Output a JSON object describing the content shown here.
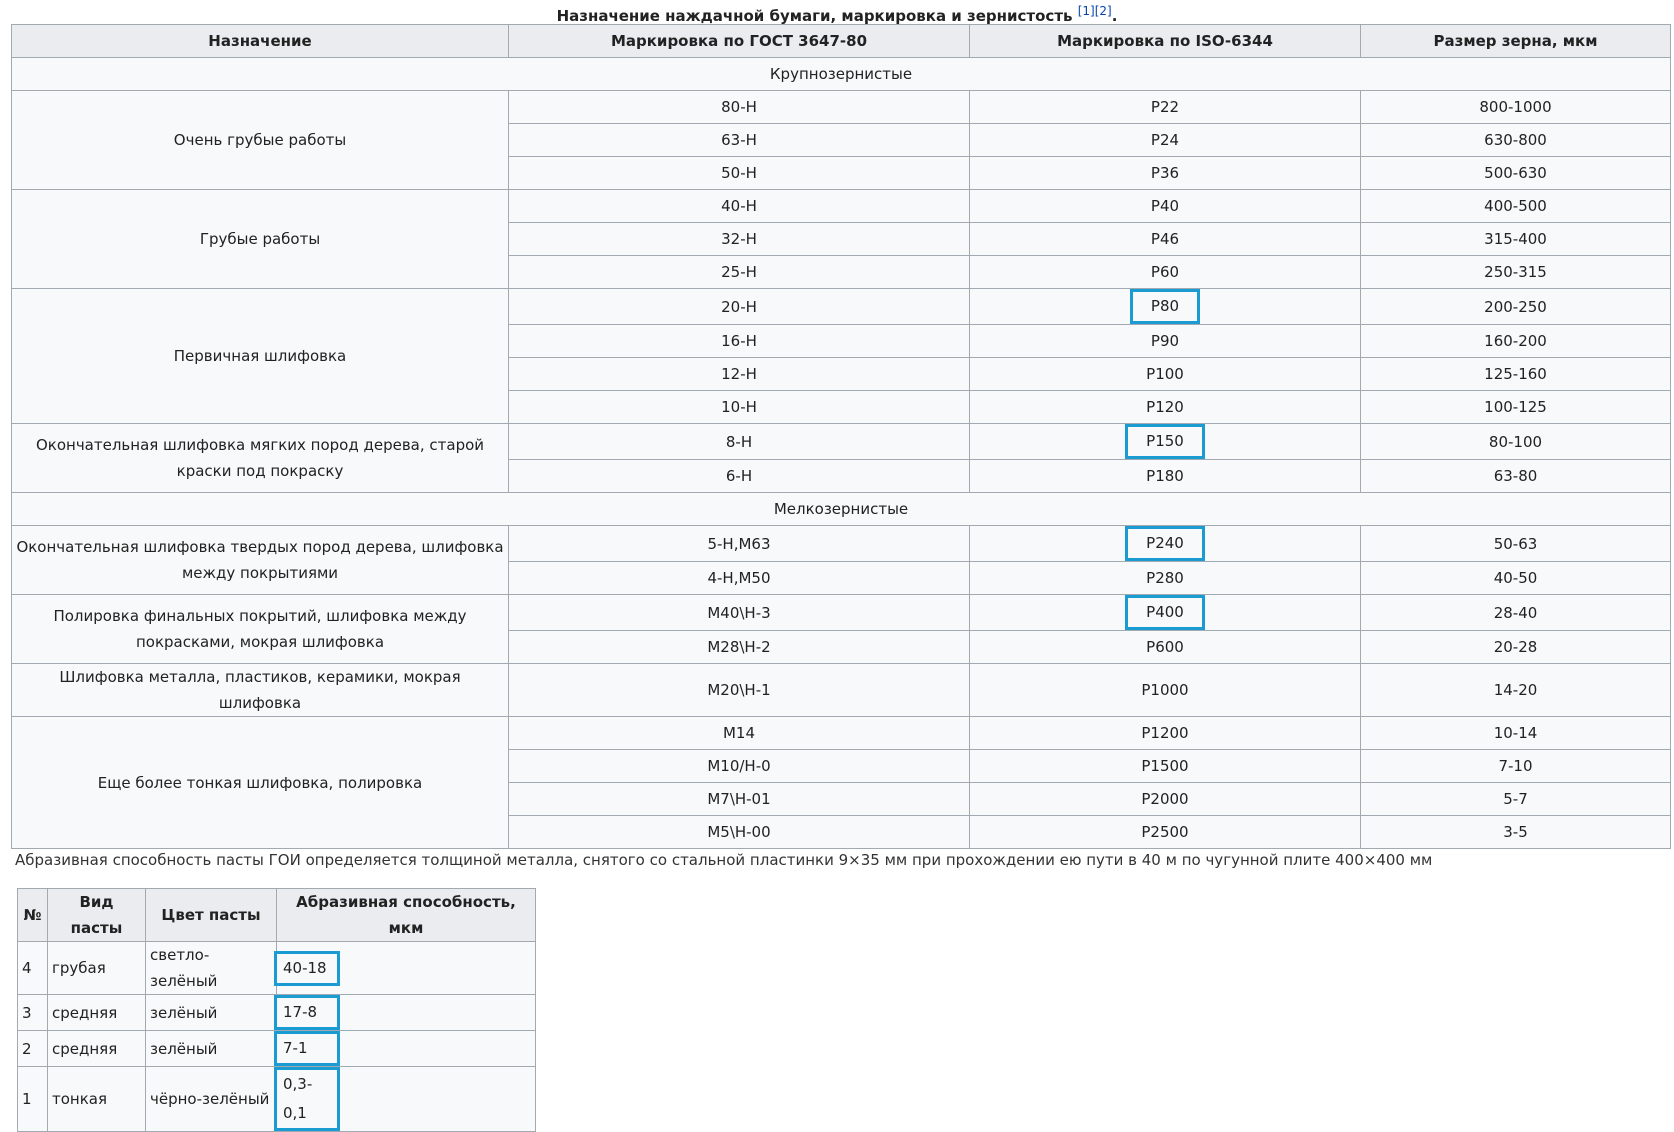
{
  "caption": {
    "title": "Назначение наждачной бумаги, маркировка и зернистость",
    "refs": "[1][2]",
    "end": "."
  },
  "table": {
    "headers": [
      "Назначение",
      "Маркировка по ГОСТ 3647-80",
      "Маркировка по ISO-6344",
      "Размер зерна, мкм"
    ],
    "sections": [
      {
        "title": "Крупнозернистые",
        "groups": [
          {
            "purpose": "Очень грубые работы",
            "rows": [
              {
                "gost": "80-Н",
                "iso": "P22",
                "size": "800-1000"
              },
              {
                "gost": "63-Н",
                "iso": "P24",
                "size": "630-800"
              },
              {
                "gost": "50-Н",
                "iso": "P36",
                "size": "500-630"
              }
            ]
          },
          {
            "purpose": "Грубые работы",
            "rows": [
              {
                "gost": "40-Н",
                "iso": "P40",
                "size": "400-500"
              },
              {
                "gost": "32-Н",
                "iso": "P46",
                "size": "315-400"
              },
              {
                "gost": "25-Н",
                "iso": "P60",
                "size": "250-315"
              }
            ]
          },
          {
            "purpose": "Первичная шлифовка",
            "rows": [
              {
                "gost": "20-Н",
                "iso": "P80",
                "size": "200-250",
                "highlight": true
              },
              {
                "gost": "16-Н",
                "iso": "P90",
                "size": "160-200"
              },
              {
                "gost": "12-Н",
                "iso": "P100",
                "size": "125-160"
              },
              {
                "gost": "10-Н",
                "iso": "P120",
                "size": "100-125"
              }
            ]
          },
          {
            "purpose": "Окончательная шлифовка мягких пород дерева, старой краски под покраску",
            "rows": [
              {
                "gost": "8-Н",
                "iso": "P150",
                "size": "80-100",
                "highlight": true
              },
              {
                "gost": "6-Н",
                "iso": "P180",
                "size": "63-80"
              }
            ]
          }
        ]
      },
      {
        "title": "Мелкозернистые",
        "groups": [
          {
            "purpose": "Окончательная шлифовка твердых пород дерева, шлифовка между покрытиями",
            "rows": [
              {
                "gost": "5-Н,М63",
                "iso": "P240",
                "size": "50-63",
                "highlight": true
              },
              {
                "gost": "4-Н,М50",
                "iso": "P280",
                "size": "40-50"
              }
            ]
          },
          {
            "purpose": "Полировка финальных покрытий, шлифовка между покрасками, мокрая шлифовка",
            "rows": [
              {
                "gost": "М40\\Н-3",
                "iso": "P400",
                "size": "28-40",
                "highlight": true
              },
              {
                "gost": "М28\\Н-2",
                "iso": "P600",
                "size": "20-28"
              }
            ]
          },
          {
            "purpose": "Шлифовка металла, пластиков, керамики, мокрая шлифовка",
            "rows": [
              {
                "gost": "М20\\Н-1",
                "iso": "P1000",
                "size": "14-20"
              }
            ]
          },
          {
            "purpose": "Еще более тонкая шлифовка, полировка",
            "rows": [
              {
                "gost": "М14",
                "iso": "P1200",
                "size": "10-14"
              },
              {
                "gost": "М10/Н-0",
                "iso": "P1500",
                "size": "7-10"
              },
              {
                "gost": "М7\\Н-01",
                "iso": "P2000",
                "size": "5-7"
              },
              {
                "gost": "М5\\Н-00",
                "iso": "P2500",
                "size": "3-5"
              }
            ]
          }
        ]
      }
    ]
  },
  "note": "Абразивная способность пасты ГОИ определяется толщиной металла, снятого со стальной пластинки 9×35 мм при прохождении ею пути в 40 м по чугунной плите 400×400 мм",
  "paste_table": {
    "headers": [
      "№",
      "Вид пасты",
      "Цвет пасты",
      "Абразивная способность, мкм"
    ],
    "highlight_column": 3,
    "rows": [
      [
        "4",
        "грубая",
        "светло-зелёный",
        "40-18"
      ],
      [
        "3",
        "средняя",
        "зелёный",
        "17-8"
      ],
      [
        "2",
        "средняя",
        "зелёный",
        "7-1"
      ],
      [
        "1",
        "тонкая",
        "чёрно-зелёный",
        "0,3-0,1"
      ]
    ]
  }
}
